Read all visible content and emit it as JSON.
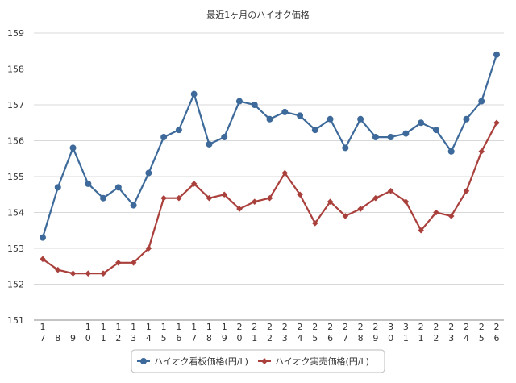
{
  "chart_data": {
    "type": "line",
    "title": "最近1ヶ月のハイオク価格",
    "xlabel": "",
    "ylabel": "",
    "ylim": [
      151,
      159
    ],
    "yticks": [
      151,
      152,
      153,
      154,
      155,
      156,
      157,
      158,
      159
    ],
    "grid": true,
    "legend_position": "bottom-center",
    "categories": [
      [
        "1",
        "7"
      ],
      [
        "",
        "8"
      ],
      [
        "",
        "9"
      ],
      [
        "1",
        "0"
      ],
      [
        "1",
        "1"
      ],
      [
        "1",
        "2"
      ],
      [
        "1",
        "3"
      ],
      [
        "1",
        "4"
      ],
      [
        "1",
        "5"
      ],
      [
        "1",
        "6"
      ],
      [
        "1",
        "7"
      ],
      [
        "1",
        "8"
      ],
      [
        "1",
        "9"
      ],
      [
        "2",
        "0"
      ],
      [
        "2",
        "1"
      ],
      [
        "2",
        "2"
      ],
      [
        "2",
        "3"
      ],
      [
        "2",
        "4"
      ],
      [
        "2",
        "5"
      ],
      [
        "2",
        "6"
      ],
      [
        "2",
        "7"
      ],
      [
        "2",
        "8"
      ],
      [
        "2",
        "9"
      ],
      [
        "3",
        "0"
      ],
      [
        "3",
        "1"
      ],
      [
        "2",
        "1"
      ],
      [
        "2",
        "2"
      ],
      [
        "2",
        "3"
      ],
      [
        "2",
        "4"
      ],
      [
        "2",
        "5"
      ],
      [
        "2",
        "6"
      ]
    ],
    "series": [
      {
        "name": "ハイオク看板価格(円/L)",
        "color": "#3d6a9a",
        "marker": "circle",
        "values": [
          153.3,
          154.7,
          155.8,
          154.8,
          154.4,
          154.7,
          154.2,
          155.1,
          156.1,
          156.3,
          157.3,
          155.9,
          156.1,
          157.1,
          157.0,
          156.6,
          156.8,
          156.7,
          156.3,
          156.6,
          155.8,
          156.6,
          156.1,
          156.1,
          156.2,
          156.5,
          156.3,
          155.7,
          156.6,
          157.1,
          158.4
        ]
      },
      {
        "name": "ハイオク実売価格(円/L)",
        "color": "#a9403c",
        "marker": "diamond",
        "values": [
          152.7,
          152.4,
          152.3,
          152.3,
          152.3,
          152.6,
          152.6,
          153.0,
          154.4,
          154.4,
          154.8,
          154.4,
          154.5,
          154.1,
          154.3,
          154.4,
          155.1,
          154.5,
          153.7,
          154.3,
          153.9,
          154.1,
          154.4,
          154.6,
          154.3,
          153.5,
          154.0,
          153.9,
          154.6,
          155.7,
          156.5
        ]
      }
    ]
  }
}
